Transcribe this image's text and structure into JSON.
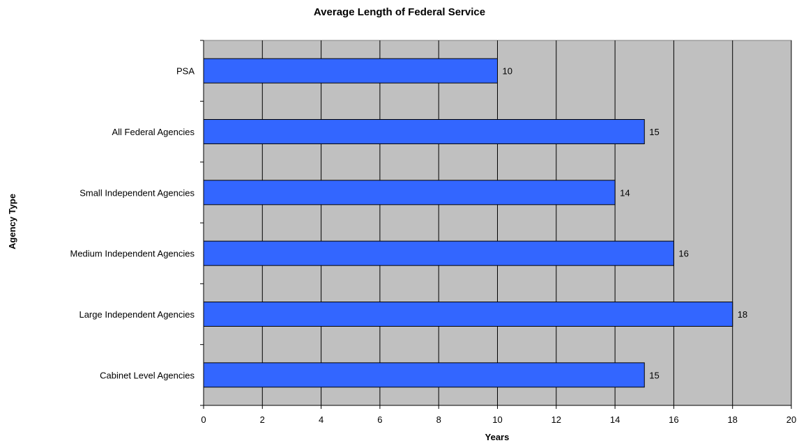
{
  "chart_data": {
    "type": "bar",
    "orientation": "horizontal",
    "title": "Average Length of Federal Service",
    "xlabel": "Years",
    "ylabel": "Agency Type",
    "categories": [
      "PSA",
      "All Federal Agencies",
      "Small Independent Agencies",
      "Medium Independent Agencies",
      "Large Independent Agencies",
      "Cabinet Level Agencies"
    ],
    "values": [
      10,
      15,
      14,
      16,
      18,
      15
    ],
    "xlim": [
      0,
      20
    ],
    "xticks": [
      0,
      2,
      4,
      6,
      8,
      10,
      12,
      14,
      16,
      18,
      20
    ],
    "grid": "vertical",
    "legend": "none",
    "colors": {
      "bar": "#3366ff",
      "plot_background": "#c0c0c0",
      "gridline": "#000000"
    }
  }
}
